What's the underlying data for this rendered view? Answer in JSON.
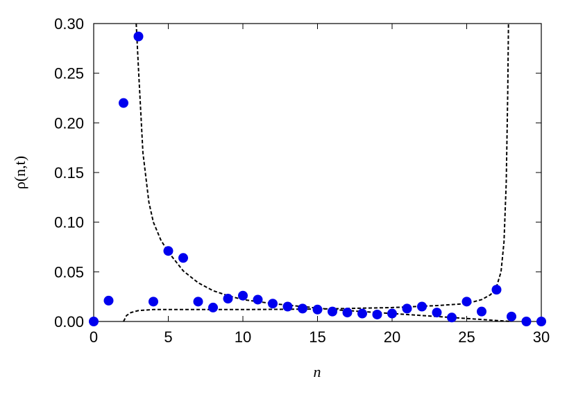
{
  "chart_data": {
    "type": "scatter",
    "xlabel": "n",
    "ylabel": "ρ(n,t)",
    "xlim": [
      0,
      30
    ],
    "ylim": [
      0,
      0.3
    ],
    "xticks": [
      0,
      5,
      10,
      15,
      20,
      25,
      30
    ],
    "yticks": [
      {
        "value": 0,
        "label": "0.00"
      },
      {
        "value": 0.05,
        "label": "0.05"
      },
      {
        "value": 0.1,
        "label": "0.10"
      },
      {
        "value": 0.15,
        "label": "0.15"
      },
      {
        "value": 0.2,
        "label": "0.20"
      },
      {
        "value": 0.25,
        "label": "0.25"
      },
      {
        "value": 0.3,
        "label": "0.30"
      }
    ],
    "series": [
      {
        "type": "scatter",
        "color": "#0000ee",
        "x": [
          0,
          1,
          2,
          3,
          4,
          5,
          6,
          7,
          8,
          9,
          10,
          11,
          12,
          13,
          14,
          15,
          16,
          17,
          18,
          19,
          20,
          21,
          22,
          23,
          24,
          25,
          26,
          27,
          28,
          29,
          30
        ],
        "values": [
          0,
          0.021,
          0.22,
          0.287,
          0.02,
          0.071,
          0.064,
          0.02,
          0.014,
          0.023,
          0.026,
          0.022,
          0.018,
          0.015,
          0.013,
          0.012,
          0.01,
          0.009,
          0.008,
          0.007,
          0.008,
          0.013,
          0.015,
          0.009,
          0.004,
          0.02,
          0.01,
          0.032,
          0.005,
          0,
          0
        ]
      },
      {
        "type": "line",
        "color": "#000000",
        "dashed": true,
        "x": [
          2.85,
          3,
          3.3,
          3.7,
          4,
          4.5,
          5,
          6,
          7,
          8,
          9,
          10,
          12,
          14,
          16,
          18,
          20,
          22,
          24,
          26,
          27,
          28
        ],
        "values": [
          0.3,
          0.255,
          0.17,
          0.12,
          0.1,
          0.082,
          0.07,
          0.051,
          0.039,
          0.031,
          0.026,
          0.022,
          0.018,
          0.015,
          0.012,
          0.01,
          0.008,
          0.006,
          0.004,
          0.002,
          0.001,
          0
        ]
      },
      {
        "type": "line",
        "color": "#000000",
        "dashed": true,
        "x": [
          2,
          2.2,
          2.5,
          3,
          4,
          6,
          10,
          15,
          20,
          23,
          25,
          26,
          26.6,
          27,
          27.3,
          27.5,
          27.65,
          27.75,
          27.8
        ],
        "values": [
          0,
          0.006,
          0.009,
          0.011,
          0.012,
          0.012,
          0.012,
          0.0125,
          0.014,
          0.016,
          0.018,
          0.022,
          0.027,
          0.035,
          0.05,
          0.08,
          0.14,
          0.23,
          0.3
        ]
      }
    ]
  }
}
